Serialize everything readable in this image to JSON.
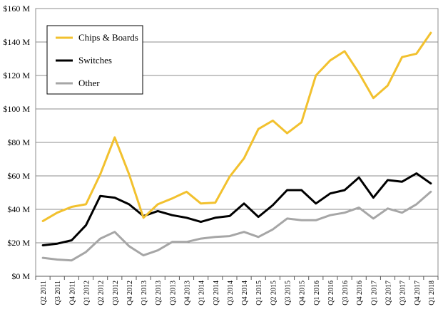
{
  "chart_data": {
    "type": "line",
    "title": "",
    "xlabel": "",
    "ylabel": "",
    "ylim": [
      0,
      160
    ],
    "ytick_values": [
      0,
      20,
      40,
      60,
      80,
      100,
      120,
      140,
      160
    ],
    "ytick_labels": [
      "$0 M",
      "$20 M",
      "$40 M",
      "$60 M",
      "$80 M",
      "$100 M",
      "$120 M",
      "$140 M",
      "$160 M"
    ],
    "grid": "horizontal",
    "legend_position": "top-left",
    "categories": [
      "Q2 2011",
      "Q3 2011",
      "Q4 2011",
      "Q1 2012",
      "Q2 2012",
      "Q3 2012",
      "Q4 2012",
      "Q1 2013",
      "Q2 2013",
      "Q3 2013",
      "Q4 2013",
      "Q1 2014",
      "Q2 2014",
      "Q3 2014",
      "Q4 2014",
      "Q1 2015",
      "Q2 2015",
      "Q3 2015",
      "Q4 2015",
      "Q1 2016",
      "Q2 2016",
      "Q3 2016",
      "Q4 2016",
      "Q1 2017",
      "Q2 2017",
      "Q3 2017",
      "Q4 2017",
      "Q1 2018"
    ],
    "series": [
      {
        "name": "Chips & Boards",
        "color": "#f2c12e",
        "values": [
          33,
          38,
          41.5,
          43,
          61,
          83,
          61,
          35,
          43,
          46.5,
          50.5,
          43.5,
          44,
          59.5,
          70.5,
          88,
          93,
          85.5,
          92,
          120,
          129,
          134.5,
          121.5,
          106.5,
          114,
          131,
          133,
          145.5
        ]
      },
      {
        "name": "Switches",
        "color": "#000000",
        "values": [
          18.5,
          19.5,
          21.5,
          30.5,
          48,
          47,
          43,
          36,
          39,
          36.5,
          35,
          32.5,
          35,
          36,
          43.5,
          35.5,
          42.5,
          51.5,
          51.5,
          43.5,
          49.5,
          51.5,
          59,
          47,
          57.5,
          56.5,
          61.5,
          55.5
        ]
      },
      {
        "name": "Other",
        "color": "#a6a6a6",
        "values": [
          11,
          10,
          9.5,
          14.5,
          22.5,
          26.5,
          18,
          12.5,
          15.5,
          20.5,
          20.5,
          22.5,
          23.5,
          24,
          26.5,
          23.5,
          28,
          34.5,
          33.5,
          33.5,
          36.5,
          38,
          41,
          34.5,
          40.5,
          38,
          43,
          50.5
        ]
      }
    ]
  }
}
